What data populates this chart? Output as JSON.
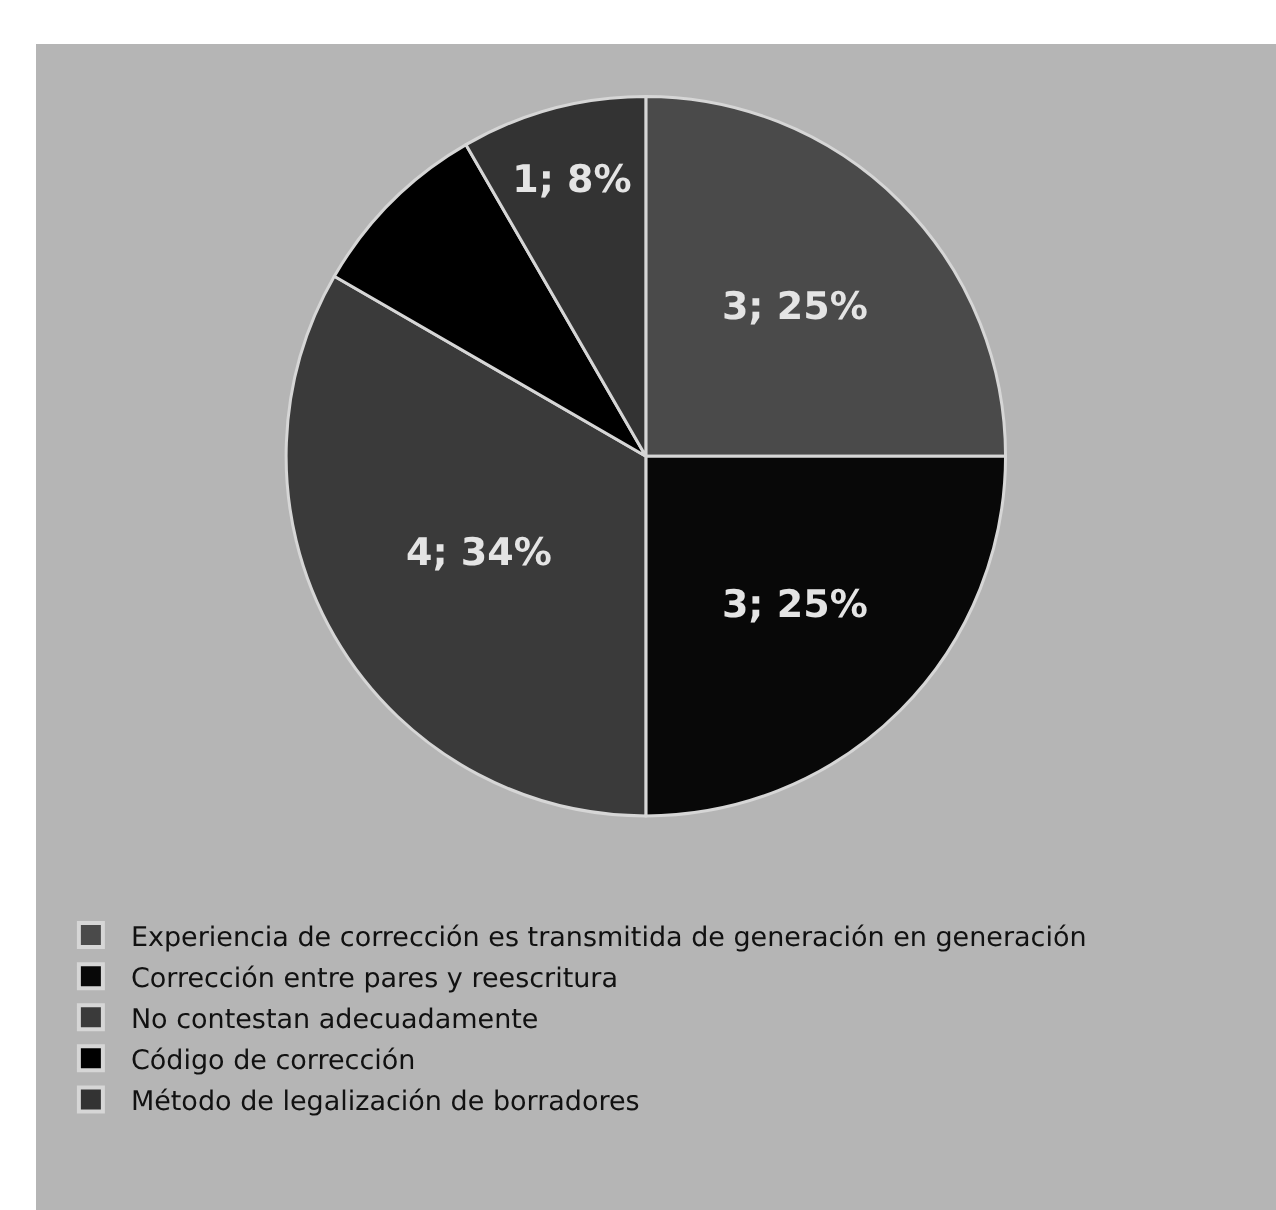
{
  "chart_data": {
    "type": "pie",
    "categories": [
      "Experiencia de corrección es transmitida de generación en generación",
      "Corrección entre pares y reescritura",
      "No contestan adecuadamente",
      "Código de corrección",
      "Método de legalización de borradores"
    ],
    "values": [
      3,
      3,
      4,
      1,
      1
    ],
    "colors": [
      "#4a4a4a",
      "#080808",
      "#3a3a3a",
      "#000000",
      "#333333"
    ],
    "value_labels": [
      "3; 25%",
      "3; 25%",
      "4; 34%",
      null,
      "1; 8%"
    ],
    "legend": "bottom"
  }
}
